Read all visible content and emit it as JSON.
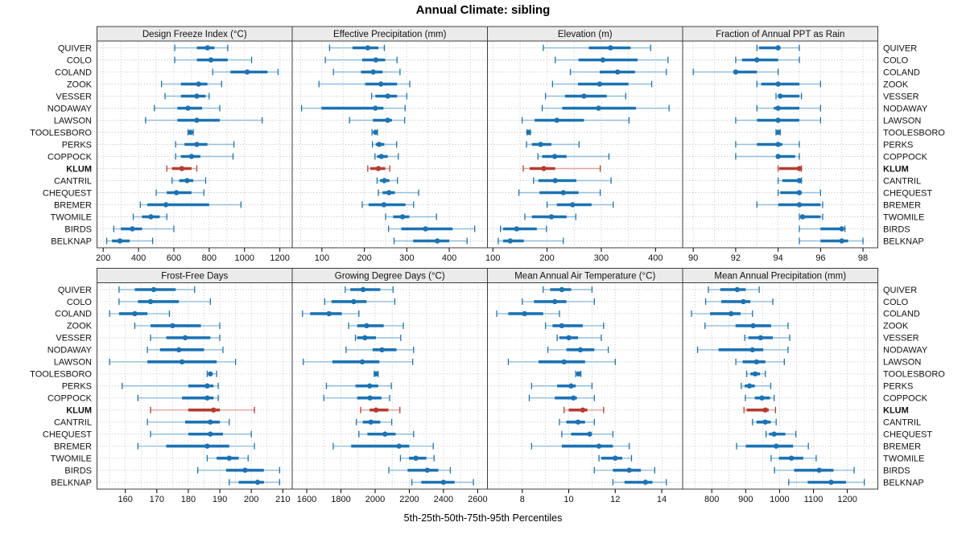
{
  "title": "Annual Climate: sibling",
  "xlabel": "5th-25th-50th-75th-95th Percentiles",
  "colors": {
    "blue": "#1b73b3",
    "blue_light": "#93bedc",
    "red": "#b53c30",
    "red_light": "#dfa49e",
    "header_bg": "#ebebeb",
    "grid": "#bdbdbd",
    "border": "#3c3c3c"
  },
  "chart_data": {
    "type": "dotplot-percentiles",
    "percentiles": [
      "5th",
      "25th",
      "50th",
      "75th",
      "95th"
    ],
    "legend_position": "none",
    "grid": "dotted",
    "highlight_site": "KLUM",
    "sites": [
      "QUIVER",
      "COLO",
      "COLAND",
      "ZOOK",
      "VESSER",
      "NODAWAY",
      "LAWSON",
      "TOOLESBORO",
      "PERKS",
      "COPPOCK",
      "KLUM",
      "CANTRIL",
      "CHEQUEST",
      "BREMER",
      "TWOMILE",
      "BIRDS",
      "BELKNAP"
    ],
    "panels": [
      {
        "id": "design-freeze-index",
        "label": "Design Freeze Index (°C)",
        "row": 0,
        "col": 0,
        "xlim": [
          165,
          1270
        ],
        "ticks": [
          200,
          400,
          600,
          800,
          1000,
          1200
        ],
        "grid_step": 100,
        "values": [
          [
            605,
            730,
            790,
            830,
            905
          ],
          [
            605,
            730,
            810,
            905,
            1040
          ],
          [
            820,
            920,
            1015,
            1130,
            1190
          ],
          [
            530,
            640,
            740,
            790,
            870
          ],
          [
            550,
            640,
            730,
            780,
            800
          ],
          [
            490,
            620,
            680,
            760,
            860
          ],
          [
            440,
            620,
            730,
            860,
            1100
          ],
          [
            680,
            688,
            694,
            700,
            710
          ],
          [
            610,
            660,
            730,
            790,
            940
          ],
          [
            610,
            640,
            700,
            750,
            935
          ],
          [
            560,
            590,
            645,
            700,
            730
          ],
          [
            590,
            630,
            675,
            710,
            780
          ],
          [
            500,
            560,
            615,
            700,
            770
          ],
          [
            410,
            450,
            555,
            800,
            980
          ],
          [
            370,
            420,
            470,
            520,
            560
          ],
          [
            260,
            300,
            365,
            420,
            600
          ],
          [
            220,
            250,
            295,
            350,
            480
          ]
        ]
      },
      {
        "id": "effective-precipitation",
        "label": "Effective Precipitation (mm)",
        "row": 0,
        "col": 1,
        "xlim": [
          30,
          490
        ],
        "ticks": [
          100,
          200,
          300,
          400
        ],
        "grid_step": 50,
        "values": [
          [
            118,
            172,
            208,
            233,
            247
          ],
          [
            108,
            195,
            227,
            249,
            277
          ],
          [
            127,
            192,
            221,
            243,
            284
          ],
          [
            93,
            202,
            239,
            277,
            307
          ],
          [
            217,
            226,
            255,
            277,
            300
          ],
          [
            52,
            99,
            226,
            245,
            296
          ],
          [
            165,
            220,
            255,
            265,
            295
          ],
          [
            218,
            222,
            226,
            228,
            231
          ],
          [
            219,
            227,
            235,
            247,
            276
          ],
          [
            225,
            230,
            240,
            255,
            280
          ],
          [
            208,
            214,
            233,
            249,
            260
          ],
          [
            230,
            237,
            247,
            259,
            278
          ],
          [
            233,
            243,
            258,
            272,
            328
          ],
          [
            195,
            210,
            246,
            297,
            316
          ],
          [
            250,
            268,
            290,
            306,
            370
          ],
          [
            257,
            287,
            344,
            408,
            460
          ],
          [
            270,
            315,
            372,
            400,
            442
          ]
        ]
      },
      {
        "id": "elevation",
        "label": "Elevation (m)",
        "row": 0,
        "col": 2,
        "xlim": [
          90,
          450
        ],
        "ticks": [
          100,
          200,
          300,
          400
        ],
        "grid_step": 50,
        "values": [
          [
            193,
            277,
            317,
            354,
            391
          ],
          [
            215,
            258,
            303,
            367,
            423
          ],
          [
            243,
            297,
            330,
            362,
            420
          ],
          [
            210,
            257,
            297,
            350,
            393
          ],
          [
            197,
            233,
            268,
            310,
            345
          ],
          [
            191,
            228,
            295,
            364,
            425
          ],
          [
            154,
            177,
            218,
            268,
            351
          ],
          [
            163,
            164,
            166,
            167,
            169
          ],
          [
            162,
            172,
            188,
            208,
            259
          ],
          [
            183,
            191,
            214,
            236,
            314
          ],
          [
            156,
            168,
            194,
            215,
            298
          ],
          [
            175,
            184,
            215,
            254,
            318
          ],
          [
            148,
            186,
            230,
            258,
            298
          ],
          [
            200,
            218,
            247,
            282,
            322
          ],
          [
            159,
            172,
            208,
            236,
            253
          ],
          [
            114,
            119,
            144,
            181,
            199
          ],
          [
            110,
            119,
            132,
            157,
            230
          ]
        ]
      },
      {
        "id": "fraction-annual-ppt-rain",
        "label": "Fraction of Annual PPT as Rain",
        "row": 0,
        "col": 3,
        "xlim": [
          89.5,
          98.7
        ],
        "ticks": [
          90,
          92,
          94,
          96,
          98
        ],
        "grid_step": 1,
        "values": [
          [
            93,
            93.1,
            94,
            94.1,
            95
          ],
          [
            92,
            92.3,
            93,
            94,
            95
          ],
          [
            90,
            91.9,
            92,
            93,
            94
          ],
          [
            93,
            93.2,
            94,
            95,
            96
          ],
          [
            93.9,
            94,
            94.1,
            95,
            95.1
          ],
          [
            93,
            93.8,
            94,
            95,
            96
          ],
          [
            92,
            93,
            94,
            95,
            96
          ],
          [
            93.9,
            93.95,
            94,
            94.05,
            94.1
          ],
          [
            92,
            93,
            94,
            94.2,
            95
          ],
          [
            92,
            93.9,
            94,
            94.8,
            95
          ],
          [
            94,
            94.05,
            95,
            95.05,
            95.1
          ],
          [
            94,
            94.2,
            95,
            95.05,
            95.1
          ],
          [
            94,
            94.1,
            95,
            95.1,
            96
          ],
          [
            93,
            94,
            95,
            96,
            96.1
          ],
          [
            95,
            95.05,
            95.15,
            96,
            96.1
          ],
          [
            95,
            96,
            97,
            97.05,
            97.15
          ],
          [
            95,
            96,
            97,
            97.3,
            98
          ]
        ]
      },
      {
        "id": "frost-free-days",
        "label": "Frost-Free Days",
        "row": 1,
        "col": 0,
        "xlim": [
          151,
          213
        ],
        "ticks": [
          160,
          170,
          180,
          190,
          200,
          210
        ],
        "grid_step": 5,
        "values": [
          [
            158,
            163,
            169,
            176,
            182
          ],
          [
            158,
            164,
            168,
            177,
            187
          ],
          [
            155,
            158,
            163,
            167,
            174
          ],
          [
            163,
            168,
            175,
            184,
            190
          ],
          [
            168,
            173,
            179,
            187,
            190
          ],
          [
            167,
            171,
            177,
            185,
            191
          ],
          [
            155,
            167,
            178,
            189,
            195
          ],
          [
            186,
            186.7,
            187,
            187.7,
            189
          ],
          [
            159,
            180,
            186,
            188,
            189.5
          ],
          [
            164,
            178,
            186,
            188,
            189.5
          ],
          [
            168,
            180,
            188,
            190,
            201
          ],
          [
            167,
            179,
            187,
            190,
            193
          ],
          [
            168,
            180,
            187,
            191,
            200
          ],
          [
            164,
            173,
            186,
            193,
            201
          ],
          [
            186,
            189,
            193,
            196,
            199
          ],
          [
            183,
            192,
            198,
            204,
            209
          ],
          [
            193,
            196,
            202,
            204,
            209
          ]
        ]
      },
      {
        "id": "growing-degree-days",
        "label": "Growing Degree Days (°C)",
        "row": 1,
        "col": 1,
        "xlim": [
          1515,
          2657
        ],
        "ticks": [
          1600,
          1800,
          2000,
          2200,
          2400,
          2600
        ],
        "grid_step": 100,
        "values": [
          [
            1825,
            1855,
            1930,
            2030,
            2105
          ],
          [
            1705,
            1745,
            1875,
            1950,
            2115
          ],
          [
            1575,
            1620,
            1730,
            1805,
            1905
          ],
          [
            1845,
            1895,
            1950,
            2050,
            2165
          ],
          [
            1885,
            1895,
            1940,
            2005,
            2150
          ],
          [
            1830,
            1985,
            2040,
            2125,
            2225
          ],
          [
            1580,
            1750,
            1925,
            2025,
            2220
          ],
          [
            1995,
            2002,
            2006,
            2012,
            2018
          ],
          [
            1715,
            1885,
            1968,
            2018,
            2095
          ],
          [
            1700,
            1895,
            1970,
            2037,
            2085
          ],
          [
            1915,
            1968,
            2005,
            2078,
            2145
          ],
          [
            1890,
            1928,
            1975,
            2030,
            2097
          ],
          [
            1905,
            1955,
            2058,
            2120,
            2225
          ],
          [
            1755,
            1860,
            2140,
            2200,
            2340
          ],
          [
            2148,
            2198,
            2238,
            2300,
            2345
          ],
          [
            2080,
            2190,
            2305,
            2370,
            2440
          ],
          [
            2215,
            2270,
            2400,
            2465,
            2575
          ]
        ]
      },
      {
        "id": "mean-annual-air-temperature",
        "label": "Mean Annual Air Temperature (°C)",
        "row": 1,
        "col": 2,
        "xlim": [
          6.5,
          14.9
        ],
        "ticks": [
          8,
          10,
          12,
          14
        ],
        "grid_step": 1,
        "values": [
          [
            8.9,
            9.2,
            9.7,
            10.1,
            11.0
          ],
          [
            8.0,
            8.5,
            9.4,
            9.9,
            11.1
          ],
          [
            6.9,
            7.4,
            8.1,
            8.9,
            9.6
          ],
          [
            9.0,
            9.3,
            9.7,
            10.6,
            11.5
          ],
          [
            9.5,
            9.6,
            10.0,
            10.4,
            11.4
          ],
          [
            9.1,
            9.9,
            10.5,
            11.1,
            11.7
          ],
          [
            7.4,
            8.7,
            9.8,
            10.7,
            12.0
          ],
          [
            10.3,
            10.38,
            10.42,
            10.46,
            10.52
          ],
          [
            8.4,
            9.5,
            10.1,
            10.3,
            11.0
          ],
          [
            8.3,
            9.4,
            10.2,
            10.35,
            11.1
          ],
          [
            9.8,
            10.0,
            10.6,
            10.8,
            11.5
          ],
          [
            9.6,
            9.9,
            10.4,
            10.7,
            11.1
          ],
          [
            9.7,
            10.1,
            10.9,
            11.0,
            11.9
          ],
          [
            8.4,
            9.7,
            11.3,
            11.9,
            12.6
          ],
          [
            11.3,
            11.4,
            12.0,
            12.3,
            12.7
          ],
          [
            11.1,
            11.9,
            12.6,
            13.1,
            13.7
          ],
          [
            11.9,
            12.4,
            13.3,
            13.6,
            14.2
          ]
        ]
      },
      {
        "id": "mean-annual-precipitation",
        "label": "Mean Annual Precipitation (mm)",
        "row": 1,
        "col": 3,
        "xlim": [
          714,
          1290
        ],
        "ticks": [
          800,
          900,
          1000,
          1100,
          1200
        ],
        "grid_step": 50,
        "values": [
          [
            790,
            825,
            875,
            900,
            940
          ],
          [
            782,
            828,
            893,
            914,
            980
          ],
          [
            740,
            795,
            857,
            885,
            920
          ],
          [
            780,
            870,
            922,
            975,
            1025
          ],
          [
            897,
            908,
            944,
            980,
            1030
          ],
          [
            758,
            820,
            920,
            952,
            1025
          ],
          [
            871,
            891,
            932,
            958,
            1014
          ],
          [
            903,
            914,
            928,
            942,
            958
          ],
          [
            887,
            897,
            911,
            927,
            974
          ],
          [
            899,
            927,
            948,
            972,
            984
          ],
          [
            895,
            903,
            958,
            968,
            988
          ],
          [
            920,
            932,
            958,
            974,
            990
          ],
          [
            960,
            969,
            984,
            1017,
            1048
          ],
          [
            873,
            900,
            990,
            1040,
            1085
          ],
          [
            975,
            998,
            1035,
            1070,
            1108
          ],
          [
            985,
            1043,
            1117,
            1159,
            1220
          ],
          [
            1027,
            1083,
            1152,
            1196,
            1250
          ]
        ]
      }
    ]
  }
}
